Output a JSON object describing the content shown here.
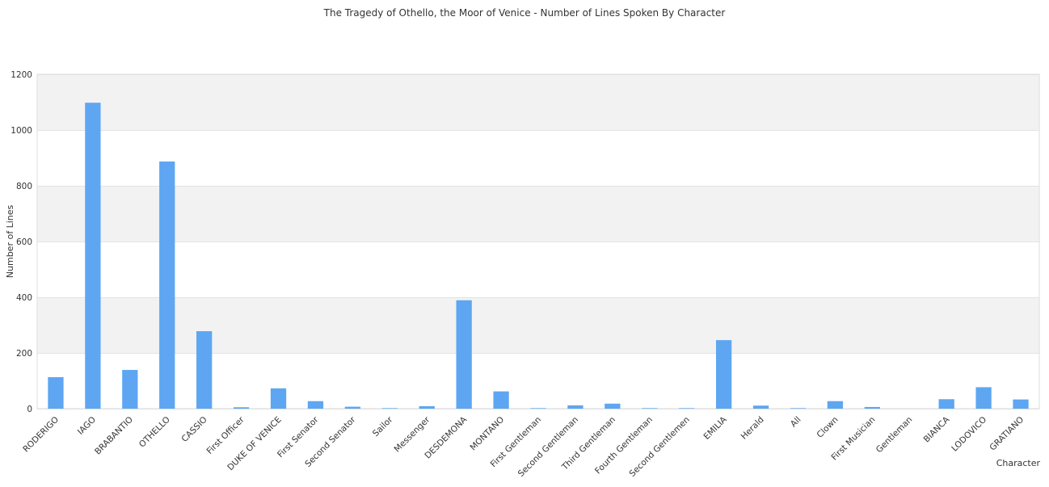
{
  "chart_data": {
    "type": "bar",
    "title": "The Tragedy of Othello, the Moor of Venice - Number of Lines Spoken By Character",
    "xlabel": "Character",
    "ylabel": "Number of Lines",
    "ylim": [
      0,
      1200
    ],
    "yticks": [
      0,
      200,
      400,
      600,
      800,
      1000,
      1200
    ],
    "grid": true,
    "legend": "none",
    "bar_color": "#5ea6f2",
    "band_color": "#f2f2f2",
    "categories": [
      "RODERIGO",
      "IAGO",
      "BRABANTIO",
      "OTHELLO",
      "CASSIO",
      "First Officer",
      "DUKE OF VENICE",
      "First Senator",
      "Second Senator",
      "Sailor",
      "Messenger",
      "DESDEMONA",
      "MONTANO",
      "First Gentleman",
      "Second Gentleman",
      "Third Gentleman",
      "Fourth Gentleman",
      "Second Gentlemen",
      "EMILIA",
      "Herald",
      "All",
      "Clown",
      "First Musician",
      "Gentleman",
      "BIANCA",
      "LODOVICO",
      "GRATIANO"
    ],
    "values": [
      113,
      1098,
      139,
      887,
      278,
      5,
      73,
      27,
      7,
      2,
      9,
      389,
      62,
      2,
      12,
      18,
      2,
      2,
      246,
      11,
      2,
      27,
      6,
      0,
      34,
      77,
      33
    ]
  }
}
